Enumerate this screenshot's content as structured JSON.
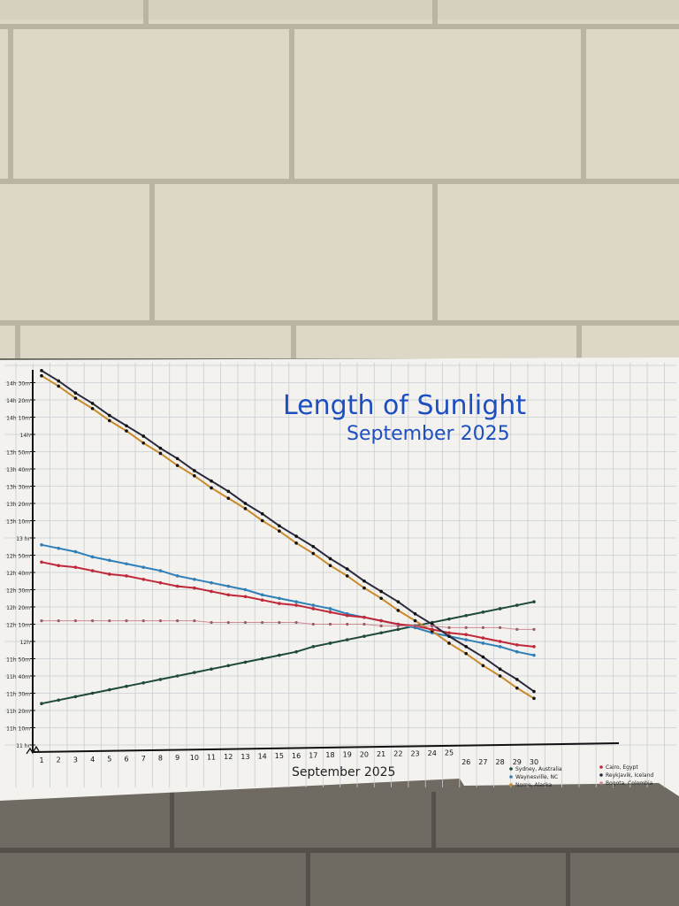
{
  "chart_data": {
    "type": "line",
    "title": "Length of Sunlight",
    "subtitle": "September 2025",
    "xlabel": "September 2025",
    "ylabel": "",
    "x": [
      1,
      2,
      3,
      4,
      5,
      6,
      7,
      8,
      9,
      10,
      11,
      12,
      13,
      14,
      15,
      16,
      17,
      18,
      19,
      20,
      21,
      22,
      23,
      24,
      25,
      26,
      27,
      28,
      29,
      30
    ],
    "y_ticks": [
      "11 hr",
      "11h 10m",
      "11h 20m",
      "11h 30m",
      "11h 40m",
      "11h 50m",
      "12h",
      "12h 10m",
      "12h 20m",
      "12h 30m",
      "12h 40m",
      "12h 50m",
      "13 hr",
      "13h 10m",
      "13h 20m",
      "13h 30m",
      "13h 40m",
      "13h 50m",
      "14h",
      "14h 10m",
      "14h 20m",
      "14h 30m"
    ],
    "ylim": [
      "11:00",
      "14:40"
    ],
    "y_axis_break": true,
    "grid": true,
    "legend_position": "bottom-right",
    "series": [
      {
        "name": "Sydney, Australia",
        "color": "#1f4a38",
        "values": [
          "11:24",
          "11:26",
          "11:28",
          "11:30",
          "11:32",
          "11:34",
          "11:36",
          "11:38",
          "11:40",
          "11:42",
          "11:44",
          "11:46",
          "11:48",
          "11:50",
          "11:52",
          "11:54",
          "11:57",
          "11:59",
          "12:01",
          "12:03",
          "12:05",
          "12:07",
          "12:09",
          "12:11",
          "12:13",
          "12:15",
          "12:17",
          "12:19",
          "12:21",
          "12:23"
        ]
      },
      {
        "name": "Waynesville, NC",
        "color": "#2f7fb8",
        "values": [
          "12:56",
          "12:54",
          "12:52",
          "12:49",
          "12:47",
          "12:45",
          "12:43",
          "12:41",
          "12:38",
          "12:36",
          "12:34",
          "12:32",
          "12:30",
          "12:27",
          "12:25",
          "12:23",
          "12:21",
          "12:19",
          "12:16",
          "12:14",
          "12:12",
          "12:10",
          "12:08",
          "12:05",
          "12:03",
          "12:01",
          "11:59",
          "11:57",
          "11:54",
          "11:52"
        ]
      },
      {
        "name": "Nome, Alaska",
        "color": "#c98a2a",
        "values": [
          "14:34",
          "14:28",
          "14:21",
          "14:15",
          "14:08",
          "14:02",
          "13:55",
          "13:49",
          "13:42",
          "13:36",
          "13:29",
          "13:23",
          "13:17",
          "13:10",
          "13:04",
          "12:57",
          "12:51",
          "12:44",
          "12:38",
          "12:31",
          "12:25",
          "12:18",
          "12:12",
          "12:06",
          "11:59",
          "11:53",
          "11:46",
          "11:40",
          "11:33",
          "11:27"
        ]
      },
      {
        "name": "Cairo, Egypt",
        "color": "#c0283a",
        "values": [
          "12:46",
          "12:44",
          "12:43",
          "12:41",
          "12:39",
          "12:38",
          "12:36",
          "12:34",
          "12:32",
          "12:31",
          "12:29",
          "12:27",
          "12:26",
          "12:24",
          "12:22",
          "12:21",
          "12:19",
          "12:17",
          "12:15",
          "12:14",
          "12:12",
          "12:10",
          "12:09",
          "12:07",
          "12:05",
          "12:04",
          "12:02",
          "12:00",
          "11:58",
          "11:57"
        ]
      },
      {
        "name": "Reykjavik, Iceland",
        "color": "#2a2a3e",
        "values": [
          "14:37",
          "14:31",
          "14:24",
          "14:18",
          "14:11",
          "14:05",
          "13:59",
          "13:52",
          "13:46",
          "13:39",
          "13:33",
          "13:27",
          "13:20",
          "13:14",
          "13:07",
          "13:01",
          "12:55",
          "12:48",
          "12:42",
          "12:35",
          "12:29",
          "12:23",
          "12:16",
          "12:10",
          "12:03",
          "11:57",
          "11:51",
          "11:44",
          "11:38",
          "11:31"
        ]
      },
      {
        "name": "Bogota, Colombia",
        "color": "#d08a94",
        "values": [
          "12:12",
          "12:12",
          "12:12",
          "12:12",
          "12:12",
          "12:12",
          "12:12",
          "12:12",
          "12:12",
          "12:12",
          "12:11",
          "12:11",
          "12:11",
          "12:11",
          "12:11",
          "12:11",
          "12:10",
          "12:10",
          "12:10",
          "12:10",
          "12:09",
          "12:09",
          "12:09",
          "12:09",
          "12:08",
          "12:08",
          "12:08",
          "12:08",
          "12:07",
          "12:07"
        ]
      }
    ]
  }
}
